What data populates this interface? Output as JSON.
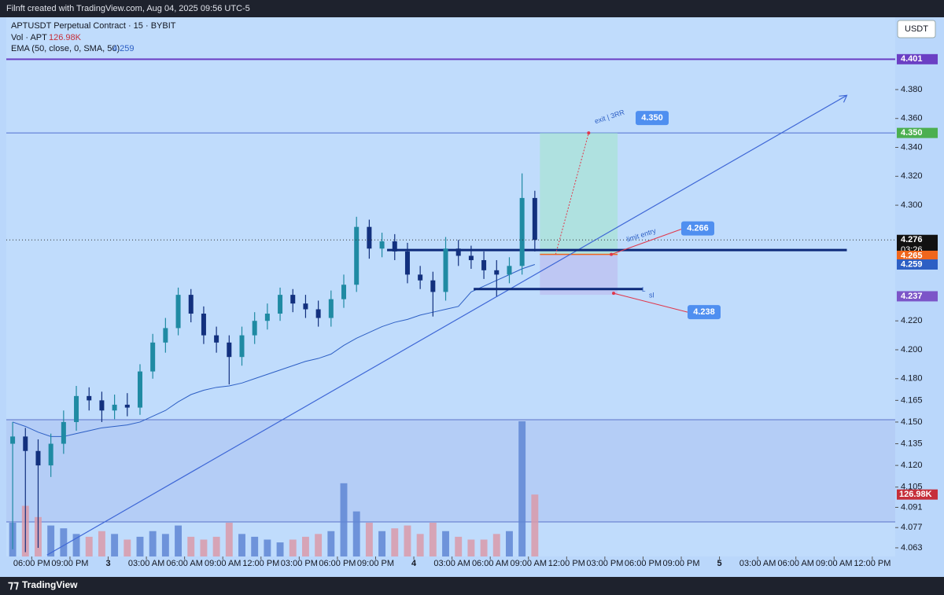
{
  "header": {
    "credit": "Filnft created with TradingView.com, Aug 04, 2025 09:56 UTC-5",
    "currency": "USDT",
    "brand": "TradingView"
  },
  "chart_data": {
    "type": "candlestick",
    "symbol": "APTUSDT Perpetual Contract · 15 · BYBIT",
    "volume_label": "Vol · APT",
    "volume_value": "126.98K",
    "ema_label": "EMA (50, close, 0, SMA, 50)",
    "ema_value": "4.259",
    "x": [
      -1.5,
      -0.5,
      0.5,
      1.5,
      2.5,
      3.5,
      4.5,
      5.5,
      6.5,
      7.5,
      8.5,
      9.5,
      10.5,
      11.5,
      12.5,
      13.5,
      14.5,
      15.5,
      16.5,
      17.5,
      18.5,
      19.5,
      20.5,
      21.5,
      22.5,
      23.5,
      24.5,
      25.5,
      26.5,
      27.5,
      28.5,
      29.5,
      30.5,
      31.5,
      32.5,
      33.5,
      34.5,
      35.5,
      36.5,
      37.5,
      38.5,
      39.5
    ],
    "open": [
      4.135,
      4.14,
      4.13,
      4.12,
      4.135,
      4.15,
      4.168,
      4.165,
      4.158,
      4.162,
      4.16,
      4.185,
      4.205,
      4.215,
      4.238,
      4.225,
      4.21,
      4.205,
      4.195,
      4.21,
      4.22,
      4.225,
      4.238,
      4.232,
      4.228,
      4.222,
      4.235,
      4.245,
      4.285,
      4.27,
      4.275,
      4.268,
      4.252,
      4.248,
      4.24,
      4.27,
      4.265,
      4.262,
      4.255,
      4.252,
      4.258,
      4.305
    ],
    "high": [
      4.15,
      4.146,
      4.138,
      4.142,
      4.158,
      4.175,
      4.174,
      4.171,
      4.169,
      4.17,
      4.19,
      4.211,
      4.222,
      4.243,
      4.242,
      4.23,
      4.216,
      4.21,
      4.216,
      4.226,
      4.232,
      4.243,
      4.242,
      4.238,
      4.234,
      4.241,
      4.252,
      4.292,
      4.29,
      4.281,
      4.28,
      4.274,
      4.258,
      4.254,
      4.278,
      4.276,
      4.272,
      4.268,
      4.262,
      4.264,
      4.322,
      4.31
    ],
    "low": [
      4.062,
      4.06,
      4.063,
      4.112,
      4.128,
      4.144,
      4.158,
      4.15,
      4.152,
      4.154,
      4.155,
      4.18,
      4.198,
      4.21,
      4.219,
      4.204,
      4.198,
      4.176,
      4.189,
      4.204,
      4.214,
      4.22,
      4.226,
      4.222,
      4.216,
      4.216,
      4.229,
      4.24,
      4.263,
      4.264,
      4.262,
      4.246,
      4.242,
      4.223,
      4.234,
      4.258,
      4.256,
      4.249,
      4.237,
      4.246,
      4.252,
      4.268
    ],
    "close": [
      4.14,
      4.13,
      4.12,
      4.135,
      4.15,
      4.168,
      4.165,
      4.158,
      4.162,
      4.16,
      4.185,
      4.205,
      4.215,
      4.238,
      4.225,
      4.21,
      4.205,
      4.195,
      4.21,
      4.22,
      4.225,
      4.238,
      4.232,
      4.228,
      4.222,
      4.235,
      4.245,
      4.285,
      4.27,
      4.275,
      4.268,
      4.252,
      4.248,
      4.24,
      4.27,
      4.265,
      4.262,
      4.255,
      4.252,
      4.258,
      4.305,
      4.276
    ],
    "volume": [
      60,
      90,
      70,
      55,
      50,
      40,
      35,
      45,
      40,
      30,
      35,
      45,
      40,
      55,
      35,
      30,
      35,
      60,
      40,
      35,
      30,
      25,
      30,
      35,
      40,
      45,
      130,
      80,
      60,
      45,
      50,
      55,
      40,
      60,
      45,
      35,
      30,
      30,
      40,
      45,
      240,
      110
    ],
    "ema": [
      4.15,
      4.147,
      4.143,
      4.14,
      4.14,
      4.142,
      4.144,
      4.146,
      4.147,
      4.148,
      4.15,
      4.154,
      4.158,
      4.164,
      4.169,
      4.172,
      4.174,
      4.175,
      4.177,
      4.18,
      4.183,
      4.186,
      4.189,
      4.192,
      4.194,
      4.197,
      4.203,
      4.208,
      4.212,
      4.216,
      4.219,
      4.221,
      4.224,
      4.226,
      4.228,
      4.23,
      4.24,
      4.244,
      4.248,
      4.252,
      4.256,
      4.259
    ],
    "colors": {
      "up": "#1f8aa3",
      "down": "#12307e",
      "volume_up": "#5f86d3",
      "volume_down": "#d99aa9",
      "ema": "#2d5fc4"
    },
    "xlim": [
      -2,
      67.8
    ],
    "ylim": [
      4.057,
      4.43
    ],
    "xticks": [
      {
        "value": 0,
        "label": "06:00 PM"
      },
      {
        "value": 3,
        "label": "09:00 PM"
      },
      {
        "value": 6,
        "label": "3"
      },
      {
        "value": 9,
        "label": "03:00 AM"
      },
      {
        "value": 12,
        "label": "06:00 AM"
      },
      {
        "value": 15,
        "label": "09:00 AM"
      },
      {
        "value": 18,
        "label": "12:00 PM"
      },
      {
        "value": 21,
        "label": "03:00 PM"
      },
      {
        "value": 24,
        "label": "06:00 PM"
      },
      {
        "value": 27,
        "label": "09:00 PM"
      },
      {
        "value": 30,
        "label": "4"
      },
      {
        "value": 33,
        "label": "03:00 AM"
      },
      {
        "value": 36,
        "label": "06:00 AM"
      },
      {
        "value": 39,
        "label": "09:00 AM"
      },
      {
        "value": 42,
        "label": "12:00 PM"
      },
      {
        "value": 45,
        "label": "03:00 PM"
      },
      {
        "value": 48,
        "label": "06:00 PM"
      },
      {
        "value": 51,
        "label": "09:00 PM"
      },
      {
        "value": 54,
        "label": "5"
      },
      {
        "value": 57,
        "label": "03:00 AM"
      },
      {
        "value": 60,
        "label": "06:00 AM"
      },
      {
        "value": 63,
        "label": "09:00 AM"
      },
      {
        "value": 66,
        "label": "12:00 PM"
      }
    ],
    "yticks": [
      {
        "value": 4.38,
        "label": "4.380"
      },
      {
        "value": 4.36,
        "label": "4.360"
      },
      {
        "value": 4.34,
        "label": "4.340"
      },
      {
        "value": 4.32,
        "label": "4.320"
      },
      {
        "value": 4.3,
        "label": "4.300"
      },
      {
        "value": 4.22,
        "label": "4.220"
      },
      {
        "value": 4.2,
        "label": "4.200"
      },
      {
        "value": 4.18,
        "label": "4.180"
      },
      4.165,
      {
        "value": 4.15,
        "label": "4.150"
      },
      4.135,
      {
        "value": 4.12,
        "label": "4.120"
      },
      4.105,
      4.091,
      4.077,
      4.063
    ],
    "price_tags": [
      {
        "value": 4.401,
        "label": "4.401",
        "color": "#6b3fc4"
      },
      {
        "value": 4.35,
        "label": "4.350",
        "color": "#4caf50"
      },
      {
        "value": 4.276,
        "label": "4.276",
        "color": "#111111",
        "countdown": "03:26"
      },
      {
        "value": 4.265,
        "label": "4.265",
        "color": "#f0661c"
      },
      {
        "value": 4.259,
        "label": "4.259",
        "color": "#2d5fc4"
      },
      {
        "value": 4.237,
        "label": "4.237",
        "color": "#7c55c8"
      }
    ],
    "volume_tag": {
      "label": "126.98K",
      "color": "#c62f3a"
    },
    "levels": [
      {
        "value": 4.401,
        "color": "#6b3fc4",
        "width": 2
      },
      {
        "value": 4.35,
        "color": "#4f6fd0",
        "width": 1
      }
    ],
    "segments": [
      {
        "x": [
          27.9,
          64
        ],
        "y": [
          4.269,
          4.269
        ],
        "color": "#0d2a7a",
        "width": 3
      },
      {
        "x": [
          34.7,
          48
        ],
        "y": [
          4.242,
          4.242
        ],
        "color": "#0d2a7a",
        "width": 3
      }
    ],
    "trendline": {
      "x": [
        1.2,
        64
      ],
      "y": [
        4.058,
        4.376
      ],
      "color": "#3e67d6"
    },
    "position": {
      "x": [
        39.9,
        46
      ],
      "target": {
        "value": 4.35,
        "label": "4.350"
      },
      "entry": {
        "value": 4.266,
        "label": "4.266"
      },
      "stop": {
        "value": 4.238,
        "label": "4.238"
      },
      "target_text": "exit | 3RR",
      "entry_text": "limit entry",
      "stop_text": "sl",
      "stop_mark": "L"
    }
  }
}
